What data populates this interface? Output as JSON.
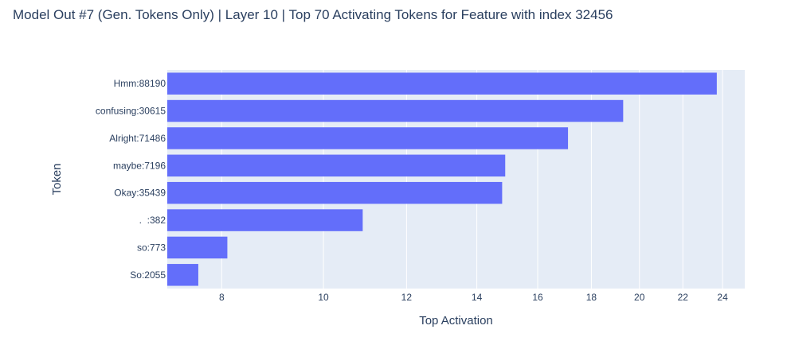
{
  "chart_data": {
    "type": "bar",
    "orientation": "horizontal",
    "title": "Model Out #7 (Gen. Tokens Only) | Layer 10 | Top 70 Activating Tokens for Feature with index 32456",
    "xlabel": "Top Activation",
    "ylabel": "Token",
    "x_scale": "log",
    "xlim": [
      7.1,
      25.2
    ],
    "x_ticks": [
      8,
      10,
      12,
      14,
      16,
      18,
      20,
      22,
      24
    ],
    "grid": true,
    "legend": "none",
    "categories": [
      "Hmm:88190",
      "confusing:30615",
      "Alright:71486",
      "maybe:7196",
      "Okay:35439",
      ".  :382",
      "so:773",
      "So:2055"
    ],
    "values": [
      23.7,
      19.3,
      17.1,
      14.9,
      14.8,
      10.9,
      8.1,
      7.6
    ],
    "colors": {
      "bar": "#636efa",
      "plot_background": "#e5ecf6",
      "grid": "#ffffff",
      "text": "#2a3f5f"
    }
  }
}
